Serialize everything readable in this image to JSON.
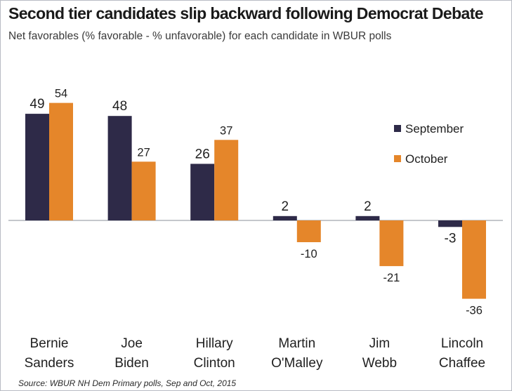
{
  "title": "Second tier candidates slip backward following Democrat Debate",
  "subtitle": "Net favorables (% favorable - % unfavorable) for each candidate in WBUR polls",
  "source": "Source: WBUR NH Dem Primary polls, Sep and Oct, 2015",
  "colors": {
    "september": "#2e2a48",
    "october": "#e5862a",
    "baseline": "#8a8f99",
    "frame": "#b8bcc4"
  },
  "chart_data": {
    "type": "bar",
    "title": "Second tier candidates slip backward following Democrat Debate",
    "subtitle": "Net favorables (% favorable - % unfavorable) for each candidate in WBUR polls",
    "categories": [
      [
        "Bernie",
        "Sanders"
      ],
      [
        "Joe",
        "Biden"
      ],
      [
        "Hillary",
        "Clinton"
      ],
      [
        "Martin",
        "O'Malley"
      ],
      [
        "Jim",
        "Webb"
      ],
      [
        "Lincoln",
        "Chaffee"
      ]
    ],
    "series": [
      {
        "name": "September",
        "values": [
          49,
          48,
          26,
          2,
          2,
          -3
        ]
      },
      {
        "name": "October",
        "values": [
          54,
          27,
          37,
          -10,
          -21,
          -36
        ]
      }
    ],
    "legend_position": "right",
    "grid": false,
    "ylim": [
      -36,
      54
    ]
  }
}
